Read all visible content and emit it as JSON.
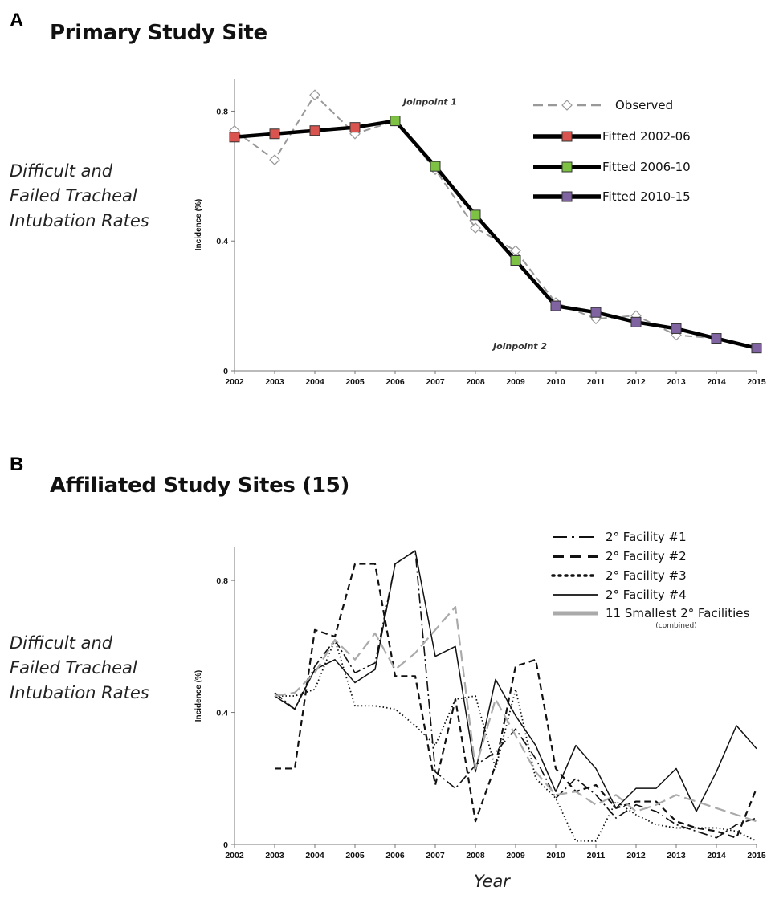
{
  "panels": [
    {
      "letter": "A",
      "title": "Primary Study Site",
      "side_label": [
        "Difficult and",
        "Failed Tracheal",
        "Intubation Rates"
      ]
    },
    {
      "letter": "B",
      "title": "Affiliated Study Sites (15)",
      "side_label": [
        "Difficult and",
        "Failed Tracheal",
        "Intubation Rates"
      ]
    }
  ],
  "footer": {
    "xlabel": "Year"
  },
  "chart_data": [
    {
      "type": "line",
      "ylabel": "Incidence (%)",
      "ylim": [
        0,
        0.9
      ],
      "yticks": [
        0,
        0.4,
        0.8
      ],
      "ytick_labels": [
        "0",
        "0.4",
        "0.8"
      ],
      "x": [
        2002,
        2003,
        2004,
        2005,
        2006,
        2007,
        2008,
        2009,
        2010,
        2011,
        2012,
        2013,
        2014,
        2015
      ],
      "x_labels": [
        "2002",
        "2003",
        "2004",
        "2005",
        "2006",
        "2007",
        "2008",
        "2009",
        "2010",
        "2011",
        "2012",
        "2013",
        "2014",
        "2015"
      ],
      "grid": false,
      "legend_position": "top-right",
      "series": [
        {
          "name": "Observed",
          "style": "dashed-diamond",
          "color": "#999999",
          "x": [
            2002,
            2003,
            2004,
            2005,
            2006,
            2007,
            2008,
            2009,
            2010,
            2011,
            2012,
            2013,
            2014,
            2015
          ],
          "values": [
            0.74,
            0.65,
            0.85,
            0.73,
            0.77,
            0.62,
            0.44,
            0.37,
            0.21,
            0.16,
            0.17,
            0.11,
            0.1,
            0.07
          ]
        },
        {
          "name": "Fitted 2002-06",
          "style": "solid-square",
          "color": "#d9544f",
          "x": [
            2002,
            2003,
            2004,
            2005,
            2006
          ],
          "values": [
            0.72,
            0.73,
            0.74,
            0.75,
            0.77
          ]
        },
        {
          "name": "Fitted 2006-10",
          "style": "solid-square",
          "color": "#7dc242",
          "x": [
            2006,
            2007,
            2008,
            2009,
            2010
          ],
          "values": [
            0.77,
            0.63,
            0.48,
            0.34,
            0.2
          ]
        },
        {
          "name": "Fitted 2010-15",
          "style": "solid-square",
          "color": "#8064a2",
          "x": [
            2010,
            2011,
            2012,
            2013,
            2014,
            2015
          ],
          "values": [
            0.2,
            0.18,
            0.15,
            0.13,
            0.1,
            0.07
          ]
        }
      ],
      "annotations": [
        {
          "text": "Joinpoint 1",
          "x": 2006,
          "y": 0.77
        },
        {
          "text": "Joinpoint 2",
          "x": 2010,
          "y": 0.2
        }
      ]
    },
    {
      "type": "line",
      "ylabel": "Incidence (%)",
      "ylim": [
        0,
        0.9
      ],
      "yticks": [
        0,
        0.4,
        0.8
      ],
      "ytick_labels": [
        "0",
        "0.4",
        "0.8"
      ],
      "x_labels": [
        "2002",
        "2003",
        "2004",
        "2005",
        "2006",
        "2007",
        "2008",
        "2009",
        "2010",
        "2011",
        "2012",
        "2013",
        "2014",
        "2015"
      ],
      "grid": false,
      "legend_position": "top-right",
      "series": [
        {
          "name": "2° Facility #1",
          "style": "dashdot",
          "color": "#111111",
          "x": [
            2003,
            2003.5,
            2004,
            2004.5,
            2005,
            2005.5,
            2006,
            2006.5,
            2007,
            2007.5,
            2008,
            2008.5,
            2009,
            2009.5,
            2010,
            2010.5,
            2011,
            2011.5,
            2012,
            2012.5,
            2013,
            2013.5,
            2014,
            2014.5,
            2015
          ],
          "values": [
            0.46,
            0.41,
            0.54,
            0.62,
            0.52,
            0.55,
            0.85,
            0.89,
            0.22,
            0.17,
            0.24,
            0.28,
            0.35,
            0.26,
            0.14,
            0.2,
            0.15,
            0.08,
            0.12,
            0.1,
            0.06,
            0.04,
            0.02,
            0.06,
            0.08
          ]
        },
        {
          "name": "2° Facility #2",
          "style": "dashed",
          "color": "#111111",
          "x": [
            2003,
            2003.5,
            2004,
            2004.5,
            2005,
            2005.5,
            2006,
            2006.5,
            2007,
            2007.5,
            2008,
            2008.5,
            2009,
            2009.5,
            2010,
            2010.5,
            2011,
            2011.5,
            2012,
            2012.5,
            2013,
            2013.5,
            2014,
            2014.5,
            2015
          ],
          "values": [
            0.23,
            0.23,
            0.65,
            0.63,
            0.85,
            0.85,
            0.51,
            0.51,
            0.18,
            0.44,
            0.07,
            0.24,
            0.54,
            0.56,
            0.23,
            0.16,
            0.18,
            0.11,
            0.13,
            0.13,
            0.07,
            0.05,
            0.04,
            0.02,
            0.17
          ]
        },
        {
          "name": "2° Facility #3",
          "style": "dotted",
          "color": "#111111",
          "x": [
            2003,
            2003.5,
            2004,
            2004.5,
            2005,
            2005.5,
            2006,
            2006.5,
            2007,
            2007.5,
            2008,
            2008.5,
            2009,
            2009.5,
            2010,
            2010.5,
            2011,
            2011.5,
            2012,
            2012.5,
            2013,
            2013.5,
            2014,
            2014.5,
            2015
          ],
          "values": [
            0.45,
            0.45,
            0.47,
            0.62,
            0.42,
            0.42,
            0.41,
            0.36,
            0.3,
            0.44,
            0.45,
            0.23,
            0.47,
            0.2,
            0.14,
            0.01,
            0.01,
            0.13,
            0.09,
            0.06,
            0.05,
            0.05,
            0.05,
            0.04,
            0.01
          ]
        },
        {
          "name": "2° Facility #4",
          "style": "solid",
          "color": "#111111",
          "x": [
            2003,
            2003.5,
            2004,
            2004.5,
            2005,
            2005.5,
            2006,
            2006.5,
            2007,
            2007.5,
            2008,
            2008.5,
            2009,
            2009.5,
            2010,
            2010.5,
            2011,
            2011.5,
            2012,
            2012.5,
            2013,
            2013.5,
            2014,
            2014.5,
            2015
          ],
          "values": [
            0.45,
            0.41,
            0.53,
            0.56,
            0.49,
            0.53,
            0.85,
            0.89,
            0.57,
            0.6,
            0.22,
            0.5,
            0.39,
            0.3,
            0.16,
            0.3,
            0.23,
            0.11,
            0.17,
            0.17,
            0.23,
            0.1,
            0.22,
            0.36,
            0.29
          ]
        },
        {
          "name": "11 Smallest 2° Facilities",
          "subtitle": "(combined)",
          "style": "gray-dashed",
          "color": "#aaaaaa",
          "x": [
            2003,
            2003.5,
            2004,
            2004.5,
            2005,
            2005.5,
            2006,
            2006.5,
            2007,
            2007.5,
            2008,
            2008.5,
            2009,
            2009.5,
            2010,
            2010.5,
            2011,
            2011.5,
            2012,
            2012.5,
            2013,
            2013.5,
            2014,
            2014.5,
            2015
          ],
          "values": [
            0.45,
            0.46,
            0.52,
            0.62,
            0.56,
            0.64,
            0.53,
            0.58,
            0.65,
            0.72,
            0.23,
            0.44,
            0.33,
            0.22,
            0.15,
            0.16,
            0.12,
            0.15,
            0.1,
            0.12,
            0.15,
            0.13,
            0.11,
            0.09,
            0.07
          ]
        }
      ]
    }
  ]
}
